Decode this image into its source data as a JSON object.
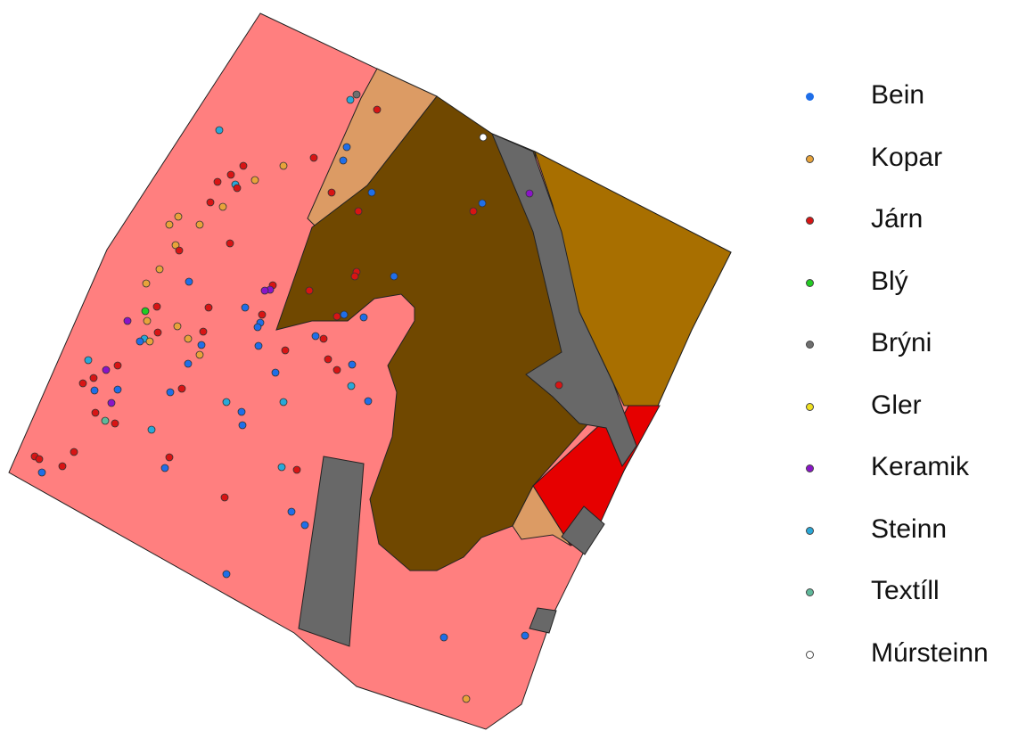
{
  "legend": {
    "items": [
      {
        "label": "Bein",
        "color": "#1f6ee8"
      },
      {
        "label": "Kopar",
        "color": "#e8a33a"
      },
      {
        "label": "Járn",
        "color": "#d81414"
      },
      {
        "label": "Blý",
        "color": "#22cc22"
      },
      {
        "label": "Brýni",
        "color": "#6f6f6f"
      },
      {
        "label": "Gler",
        "color": "#f0e020"
      },
      {
        "label": "Keramik",
        "color": "#8a14c8"
      },
      {
        "label": "Steinn",
        "color": "#2aa8d8"
      },
      {
        "label": "Textíll",
        "color": "#5fb89a"
      },
      {
        "label": "Múrsteinn",
        "color": "#ffffff"
      }
    ]
  },
  "zone_colors": {
    "pink": "#ff7f7f",
    "dark_brown": "#704800",
    "ochre": "#a86f00",
    "tan": "#dc9b64",
    "gray": "#686868",
    "red": "#e60000"
  }
}
